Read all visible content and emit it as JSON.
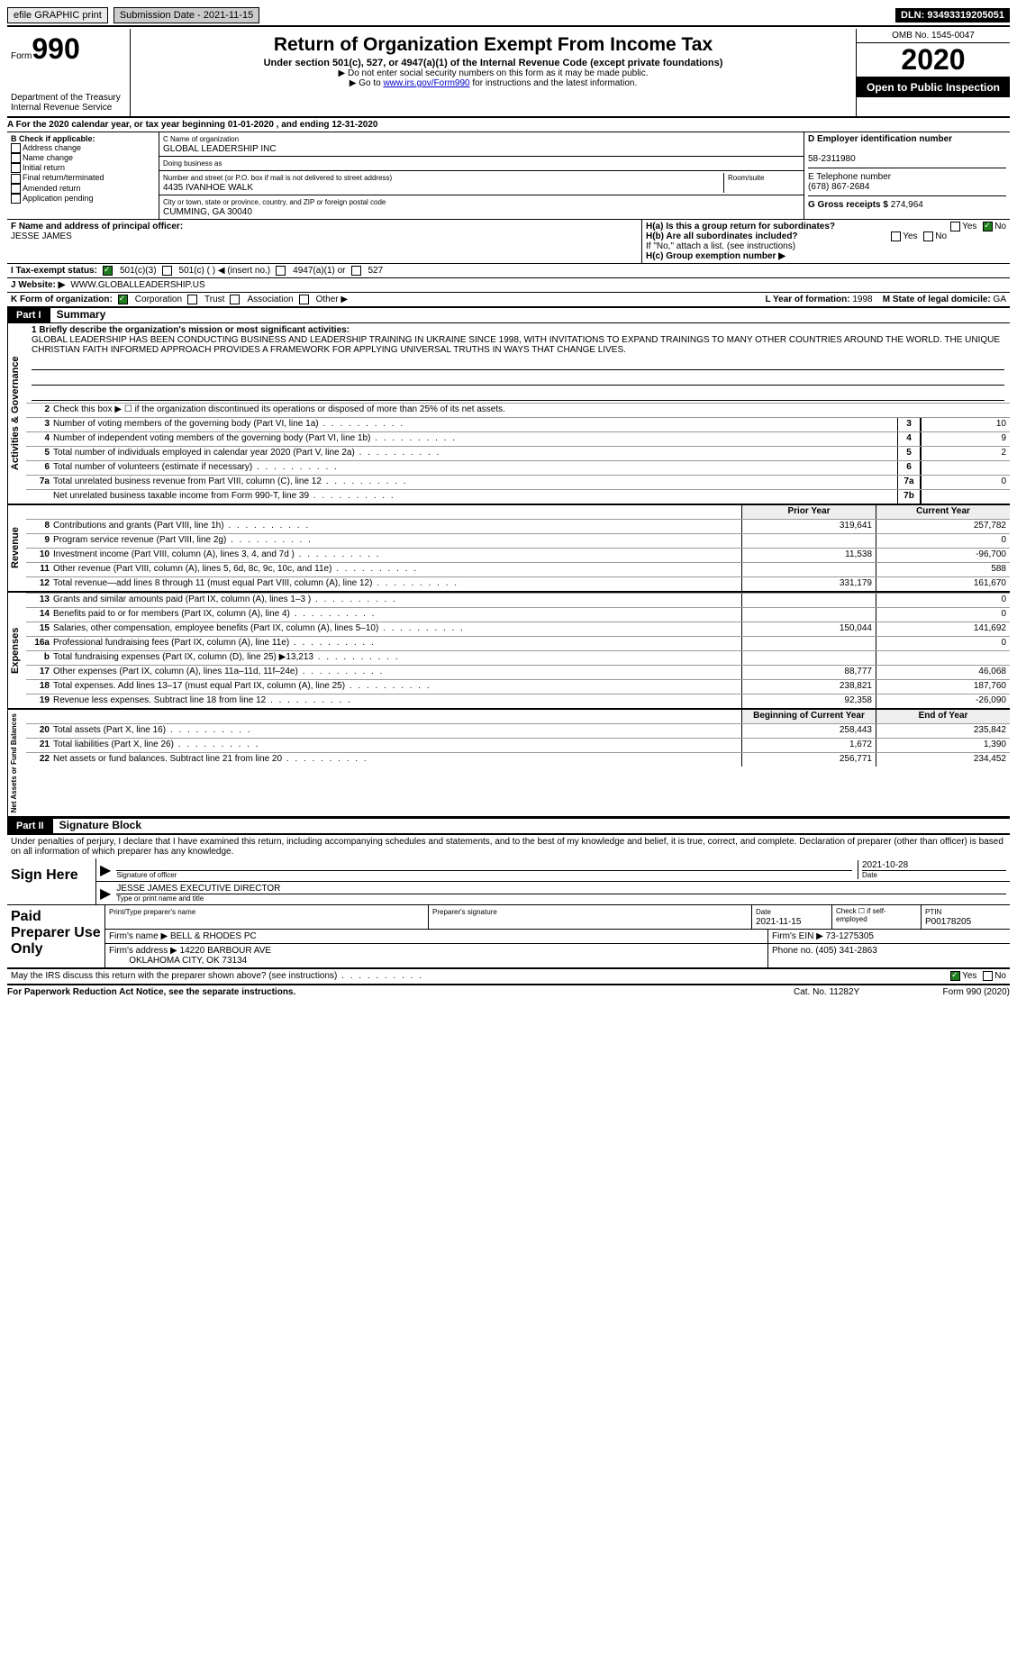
{
  "topbar": {
    "efile": "efile GRAPHIC print",
    "submission_label": "Submission Date - 2021-11-15",
    "dln": "DLN: 93493319205051"
  },
  "header": {
    "form_label": "Form",
    "form_number": "990",
    "dept1": "Department of the Treasury",
    "dept2": "Internal Revenue Service",
    "title": "Return of Organization Exempt From Income Tax",
    "subtitle": "Under section 501(c), 527, or 4947(a)(1) of the Internal Revenue Code (except private foundations)",
    "note1": "▶ Do not enter social security numbers on this form as it may be made public.",
    "note2_pre": "▶ Go to ",
    "note2_link": "www.irs.gov/Form990",
    "note2_post": " for instructions and the latest information.",
    "omb": "OMB No. 1545-0047",
    "year": "2020",
    "inspection": "Open to Public Inspection"
  },
  "line_a": "A For the 2020 calendar year, or tax year beginning 01-01-2020  , and ending 12-31-2020",
  "box_b": {
    "label": "B Check if applicable:",
    "options": [
      "Address change",
      "Name change",
      "Initial return",
      "Final return/terminated",
      "Amended return",
      "Application pending"
    ]
  },
  "box_c": {
    "name_label": "C Name of organization",
    "name": "GLOBAL LEADERSHIP INC",
    "dba_label": "Doing business as",
    "dba": "",
    "addr_label": "Number and street (or P.O. box if mail is not delivered to street address)",
    "room_label": "Room/suite",
    "addr": "4435 IVANHOE WALK",
    "city_label": "City or town, state or province, country, and ZIP or foreign postal code",
    "city": "CUMMING, GA  30040",
    "officer_label": "F Name and address of principal officer:",
    "officer": "JESSE JAMES"
  },
  "box_d": {
    "ein_label": "D Employer identification number",
    "ein": "58-2311980",
    "phone_label": "E Telephone number",
    "phone": "(678) 867-2684",
    "gross_label": "G Gross receipts $",
    "gross": "274,964"
  },
  "box_h": {
    "ha": "H(a)  Is this a group return for subordinates?",
    "hb": "H(b)  Are all subordinates included?",
    "hb_note": "If \"No,\" attach a list. (see instructions)",
    "hc": "H(c)  Group exemption number ▶",
    "yes": "Yes",
    "no": "No"
  },
  "row_i": {
    "label": "I  Tax-exempt status:",
    "opt1": "501(c)(3)",
    "opt2": "501(c) (  ) ◀ (insert no.)",
    "opt3": "4947(a)(1) or",
    "opt4": "527"
  },
  "row_j": {
    "label": "J  Website: ▶",
    "value": "WWW.GLOBALLEADERSHIP.US"
  },
  "row_k": {
    "label": "K Form of organization:",
    "opts": [
      "Corporation",
      "Trust",
      "Association",
      "Other ▶"
    ],
    "year_label": "L Year of formation:",
    "year": "1998",
    "state_label": "M State of legal domicile:",
    "state": "GA"
  },
  "part1": {
    "header": "Part I",
    "title": "Summary",
    "mission_label": "1  Briefly describe the organization's mission or most significant activities:",
    "mission": "GLOBAL LEADERSHIP HAS BEEN CONDUCTING BUSINESS AND LEADERSHIP TRAINING IN UKRAINE SINCE 1998, WITH INVITATIONS TO EXPAND TRAININGS TO MANY OTHER COUNTRIES AROUND THE WORLD. THE UNIQUE CHRISTIAN FAITH INFORMED APPROACH PROVIDES A FRAMEWORK FOR APPLYING UNIVERSAL TRUTHS IN WAYS THAT CHANGE LIVES.",
    "line2": "Check this box ▶ ☐ if the organization discontinued its operations or disposed of more than 25% of its net assets.",
    "governance_label": "Activities & Governance",
    "revenue_label": "Revenue",
    "expenses_label": "Expenses",
    "netassets_label": "Net Assets or Fund Balances",
    "prior_year": "Prior Year",
    "current_year": "Current Year",
    "boy": "Beginning of Current Year",
    "eoy": "End of Year",
    "rows_gov": [
      {
        "n": "3",
        "d": "Number of voting members of the governing body (Part VI, line 1a)",
        "b": "3",
        "v": "10"
      },
      {
        "n": "4",
        "d": "Number of independent voting members of the governing body (Part VI, line 1b)",
        "b": "4",
        "v": "9"
      },
      {
        "n": "5",
        "d": "Total number of individuals employed in calendar year 2020 (Part V, line 2a)",
        "b": "5",
        "v": "2"
      },
      {
        "n": "6",
        "d": "Total number of volunteers (estimate if necessary)",
        "b": "6",
        "v": ""
      },
      {
        "n": "7a",
        "d": "Total unrelated business revenue from Part VIII, column (C), line 12",
        "b": "7a",
        "v": "0"
      },
      {
        "n": "",
        "d": "Net unrelated business taxable income from Form 990-T, line 39",
        "b": "7b",
        "v": ""
      }
    ],
    "rows_rev": [
      {
        "n": "8",
        "d": "Contributions and grants (Part VIII, line 1h)",
        "p": "319,641",
        "c": "257,782"
      },
      {
        "n": "9",
        "d": "Program service revenue (Part VIII, line 2g)",
        "p": "",
        "c": "0"
      },
      {
        "n": "10",
        "d": "Investment income (Part VIII, column (A), lines 3, 4, and 7d )",
        "p": "11,538",
        "c": "-96,700"
      },
      {
        "n": "11",
        "d": "Other revenue (Part VIII, column (A), lines 5, 6d, 8c, 9c, 10c, and 11e)",
        "p": "",
        "c": "588"
      },
      {
        "n": "12",
        "d": "Total revenue—add lines 8 through 11 (must equal Part VIII, column (A), line 12)",
        "p": "331,179",
        "c": "161,670"
      }
    ],
    "rows_exp": [
      {
        "n": "13",
        "d": "Grants and similar amounts paid (Part IX, column (A), lines 1–3 )",
        "p": "",
        "c": "0"
      },
      {
        "n": "14",
        "d": "Benefits paid to or for members (Part IX, column (A), line 4)",
        "p": "",
        "c": "0"
      },
      {
        "n": "15",
        "d": "Salaries, other compensation, employee benefits (Part IX, column (A), lines 5–10)",
        "p": "150,044",
        "c": "141,692"
      },
      {
        "n": "16a",
        "d": "Professional fundraising fees (Part IX, column (A), line 11e)",
        "p": "",
        "c": "0"
      },
      {
        "n": "b",
        "d": "Total fundraising expenses (Part IX, column (D), line 25) ▶13,213",
        "p": "",
        "c": ""
      },
      {
        "n": "17",
        "d": "Other expenses (Part IX, column (A), lines 11a–11d, 11f–24e)",
        "p": "88,777",
        "c": "46,068"
      },
      {
        "n": "18",
        "d": "Total expenses. Add lines 13–17 (must equal Part IX, column (A), line 25)",
        "p": "238,821",
        "c": "187,760"
      },
      {
        "n": "19",
        "d": "Revenue less expenses. Subtract line 18 from line 12",
        "p": "92,358",
        "c": "-26,090"
      }
    ],
    "rows_net": [
      {
        "n": "20",
        "d": "Total assets (Part X, line 16)",
        "p": "258,443",
        "c": "235,842"
      },
      {
        "n": "21",
        "d": "Total liabilities (Part X, line 26)",
        "p": "1,672",
        "c": "1,390"
      },
      {
        "n": "22",
        "d": "Net assets or fund balances. Subtract line 21 from line 20",
        "p": "256,771",
        "c": "234,452"
      }
    ]
  },
  "part2": {
    "header": "Part II",
    "title": "Signature Block",
    "penalty": "Under penalties of perjury, I declare that I have examined this return, including accompanying schedules and statements, and to the best of my knowledge and belief, it is true, correct, and complete. Declaration of preparer (other than officer) is based on all information of which preparer has any knowledge.",
    "sign_here": "Sign Here",
    "sig_officer": "Signature of officer",
    "sig_date": "Date",
    "sig_date_val": "2021-10-28",
    "sig_name_label": "Type or print name and title",
    "sig_name": "JESSE JAMES EXECUTIVE DIRECTOR",
    "paid_label": "Paid Preparer Use Only",
    "prep_name_label": "Print/Type preparer's name",
    "prep_sig_label": "Preparer's signature",
    "prep_date_label": "Date",
    "prep_date": "2021-11-15",
    "prep_check_label": "Check ☐ if self-employed",
    "ptin_label": "PTIN",
    "ptin": "P00178205",
    "firm_name_label": "Firm's name  ▶",
    "firm_name": "BELL & RHODES PC",
    "firm_ein_label": "Firm's EIN ▶",
    "firm_ein": "73-1275305",
    "firm_addr_label": "Firm's address ▶",
    "firm_addr1": "14220 BARBOUR AVE",
    "firm_addr2": "OKLAHOMA CITY, OK  73134",
    "firm_phone_label": "Phone no.",
    "firm_phone": "(405) 341-2863",
    "discuss": "May the IRS discuss this return with the preparer shown above? (see instructions)",
    "yes": "Yes",
    "no": "No"
  },
  "footer": {
    "left": "For Paperwork Reduction Act Notice, see the separate instructions.",
    "center": "Cat. No. 11282Y",
    "right": "Form 990 (2020)"
  }
}
